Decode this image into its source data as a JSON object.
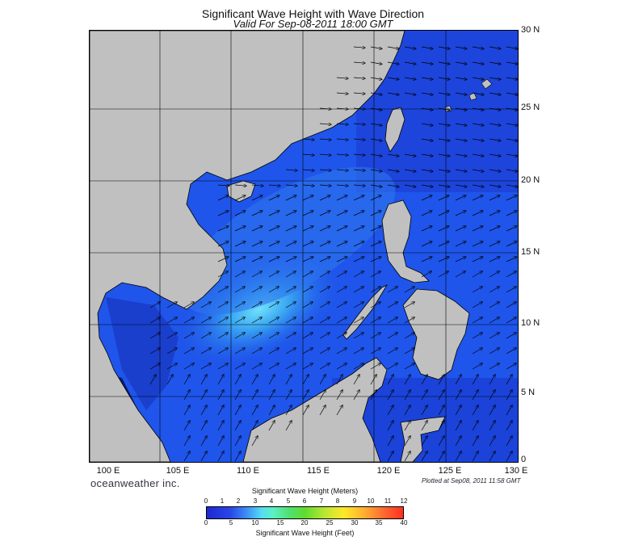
{
  "header": {
    "title": "Significant Wave Height with Wave Direction",
    "subtitle": "Valid For Sep-08-2011 18:00 GMT"
  },
  "map": {
    "lon_labels": [
      "100 E",
      "105 E",
      "110 E",
      "115 E",
      "120 E",
      "125 E",
      "130 E"
    ],
    "lat_labels": [
      "30 N",
      "25 N",
      "20 N",
      "15 N",
      "10 N",
      "5 N",
      "0"
    ],
    "colors": {
      "land": "#c0c0c0",
      "ocean_low": "#0a1ea8",
      "ocean_mid": "#1f55ea",
      "ocean_high": "#4ec8f5",
      "gridline": "#000000",
      "arrow": "#000000"
    }
  },
  "footer": {
    "brand": "oceanweather inc.",
    "plotted": "Plotted at Sep08, 2011 11:58 GMT"
  },
  "legend": {
    "title_meters": "Significant Wave Height (Meters)",
    "title_feet": "Significant Wave Height (Feet)",
    "meter_ticks": [
      "0",
      "1",
      "2",
      "3",
      "4",
      "5",
      "6",
      "7",
      "8",
      "9",
      "10",
      "11",
      "12"
    ],
    "feet_ticks": [
      "0",
      "5",
      "10",
      "15",
      "20",
      "25",
      "30",
      "35",
      "40"
    ]
  }
}
